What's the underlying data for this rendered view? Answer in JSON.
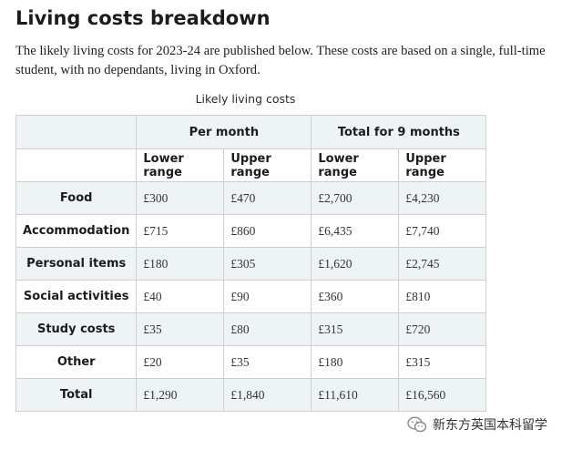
{
  "heading": "Living costs breakdown",
  "intro": "The likely living costs for 2023-24 are published below. These costs are based on a single, full-time student, with no dependants, living in Oxford.",
  "table": {
    "caption": "Likely living costs",
    "groups": [
      "Per month",
      "Total for 9 months"
    ],
    "subheaders": [
      "Lower range",
      "Upper range",
      "Lower range",
      "Upper range"
    ],
    "rows": [
      {
        "label": "Food",
        "values": [
          "£300",
          "£470",
          "£2,700",
          "£4,230"
        ]
      },
      {
        "label": "Accommodation",
        "values": [
          "£715",
          "£860",
          "£6,435",
          "£7,740"
        ]
      },
      {
        "label": "Personal items",
        "values": [
          "£180",
          "£305",
          "£1,620",
          "£2,745"
        ]
      },
      {
        "label": "Social activities",
        "values": [
          "£40",
          "£90",
          "£360",
          "£810"
        ]
      },
      {
        "label": "Study costs",
        "values": [
          "£35",
          "£80",
          "£315",
          "£720"
        ]
      },
      {
        "label": "Other",
        "values": [
          "£20",
          "£35",
          "£180",
          "£315"
        ]
      },
      {
        "label": "Total",
        "values": [
          "£1,290",
          "£1,840",
          "£11,610",
          "£16,560"
        ]
      }
    ]
  },
  "watermark": {
    "text": "新东方英国本科留学",
    "icon": "wechat-icon"
  },
  "colors": {
    "shade": "#eef3f6",
    "border": "#cfcfcf"
  }
}
